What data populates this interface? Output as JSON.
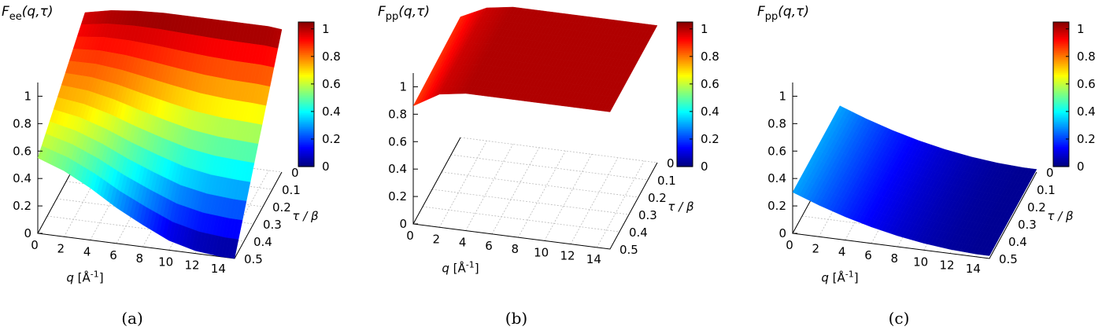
{
  "chart_data": [
    {
      "type": "surface",
      "panel_label": "(a)",
      "title_main": "F",
      "title_sub": "ee",
      "title_args": "(q,τ)",
      "xlabel_main": "q [Å",
      "xlabel_sup": "-1",
      "xlabel_close": "]",
      "ylabel": "τ / β",
      "xlim": [
        0,
        15
      ],
      "ylim": [
        0,
        0.5
      ],
      "zlim": [
        0,
        1.1
      ],
      "cblim": [
        0,
        1.05
      ],
      "x_ticks": [
        "0",
        "2",
        "4",
        "6",
        "8",
        "10",
        "12",
        "14"
      ],
      "y_ticks": [
        "0",
        "0.1",
        "0.2",
        "0.3",
        "0.4",
        "0.5"
      ],
      "z_ticks": [
        "0",
        "0.2",
        "0.4",
        "0.6",
        "0.8",
        "1"
      ],
      "cb_ticks": [
        "0",
        "0.2",
        "0.4",
        "0.6",
        "0.8",
        "1"
      ],
      "q_values": [
        0,
        2,
        4,
        6,
        8,
        10,
        12,
        14,
        15
      ],
      "tau_values": [
        0,
        0.1,
        0.2,
        0.3,
        0.4,
        0.5
      ],
      "z_edge_tau0": [
        0.98,
        1.02,
        1.04,
        1.05,
        1.05,
        1.05,
        1.05,
        1.05,
        1.04
      ],
      "z_edge_tau05": [
        0.55,
        0.48,
        0.38,
        0.26,
        0.16,
        0.07,
        0.02,
        0.0,
        0.0
      ],
      "grid": true
    },
    {
      "type": "surface",
      "panel_label": "(b)",
      "title_main": "F",
      "title_sub": "pp",
      "title_args": "(q,τ)",
      "xlabel_main": "q [Å",
      "xlabel_sup": "-1",
      "xlabel_close": "]",
      "ylabel": "τ / β",
      "xlim": [
        0,
        15
      ],
      "ylim": [
        0,
        0.5
      ],
      "zlim": [
        0,
        1.1
      ],
      "cblim": [
        0,
        1.05
      ],
      "x_ticks": [
        "0",
        "2",
        "4",
        "6",
        "8",
        "10",
        "12",
        "14"
      ],
      "y_ticks": [
        "0",
        "0.1",
        "0.2",
        "0.3",
        "0.4",
        "0.5"
      ],
      "z_ticks": [
        "0",
        "0.2",
        "0.4",
        "0.6",
        "0.8",
        "1"
      ],
      "cb_ticks": [
        "0",
        "0.2",
        "0.4",
        "0.6",
        "0.8",
        "1"
      ],
      "q_values": [
        0,
        2,
        4,
        6,
        8,
        10,
        12,
        14,
        15
      ],
      "tau_values": [
        0,
        0.1,
        0.2,
        0.3,
        0.4,
        0.5
      ],
      "z_edge_tau0": [
        0.88,
        0.97,
        1.0,
        1.0,
        1.0,
        1.0,
        1.0,
        1.0,
        1.0
      ],
      "z_edge_tau05": [
        0.86,
        0.97,
        1.0,
        1.0,
        1.0,
        1.0,
        1.0,
        1.0,
        1.0
      ],
      "grid": true
    },
    {
      "type": "surface",
      "panel_label": "(c)",
      "title_main": "F",
      "title_sub": "pp",
      "title_args": "(q,τ)",
      "xlabel_main": "q [Å",
      "xlabel_sup": "-1",
      "xlabel_close": "]",
      "ylabel": "τ / β",
      "xlim": [
        0,
        15
      ],
      "ylim": [
        0,
        0.5
      ],
      "zlim": [
        0,
        1.1
      ],
      "cblim": [
        0,
        1.05
      ],
      "x_ticks": [
        "0",
        "2",
        "4",
        "6",
        "8",
        "10",
        "12",
        "14"
      ],
      "y_ticks": [
        "0",
        "0.1",
        "0.2",
        "0.3",
        "0.4",
        "0.5"
      ],
      "z_ticks": [
        "0",
        "0.2",
        "0.4",
        "0.6",
        "0.8",
        "1"
      ],
      "cb_ticks": [
        "0",
        "0.2",
        "0.4",
        "0.6",
        "0.8",
        "1"
      ],
      "q_values": [
        0,
        2,
        4,
        6,
        8,
        10,
        12,
        14,
        15
      ],
      "tau_values": [
        0,
        0.1,
        0.2,
        0.3,
        0.4,
        0.5
      ],
      "z_edge_tau0": [
        0.3,
        0.23,
        0.17,
        0.12,
        0.08,
        0.05,
        0.03,
        0.02,
        0.02
      ],
      "z_edge_tau05": [
        0.3,
        0.23,
        0.17,
        0.12,
        0.08,
        0.05,
        0.03,
        0.02,
        0.02
      ],
      "grid": true
    }
  ],
  "colors": {
    "jet": [
      "#00007f",
      "#0000ff",
      "#007fff",
      "#00ffff",
      "#7fff7f",
      "#ffff00",
      "#ff7f00",
      "#ff0000",
      "#7f0000"
    ],
    "axis": "#000000",
    "grid": "#bbbbbb"
  }
}
